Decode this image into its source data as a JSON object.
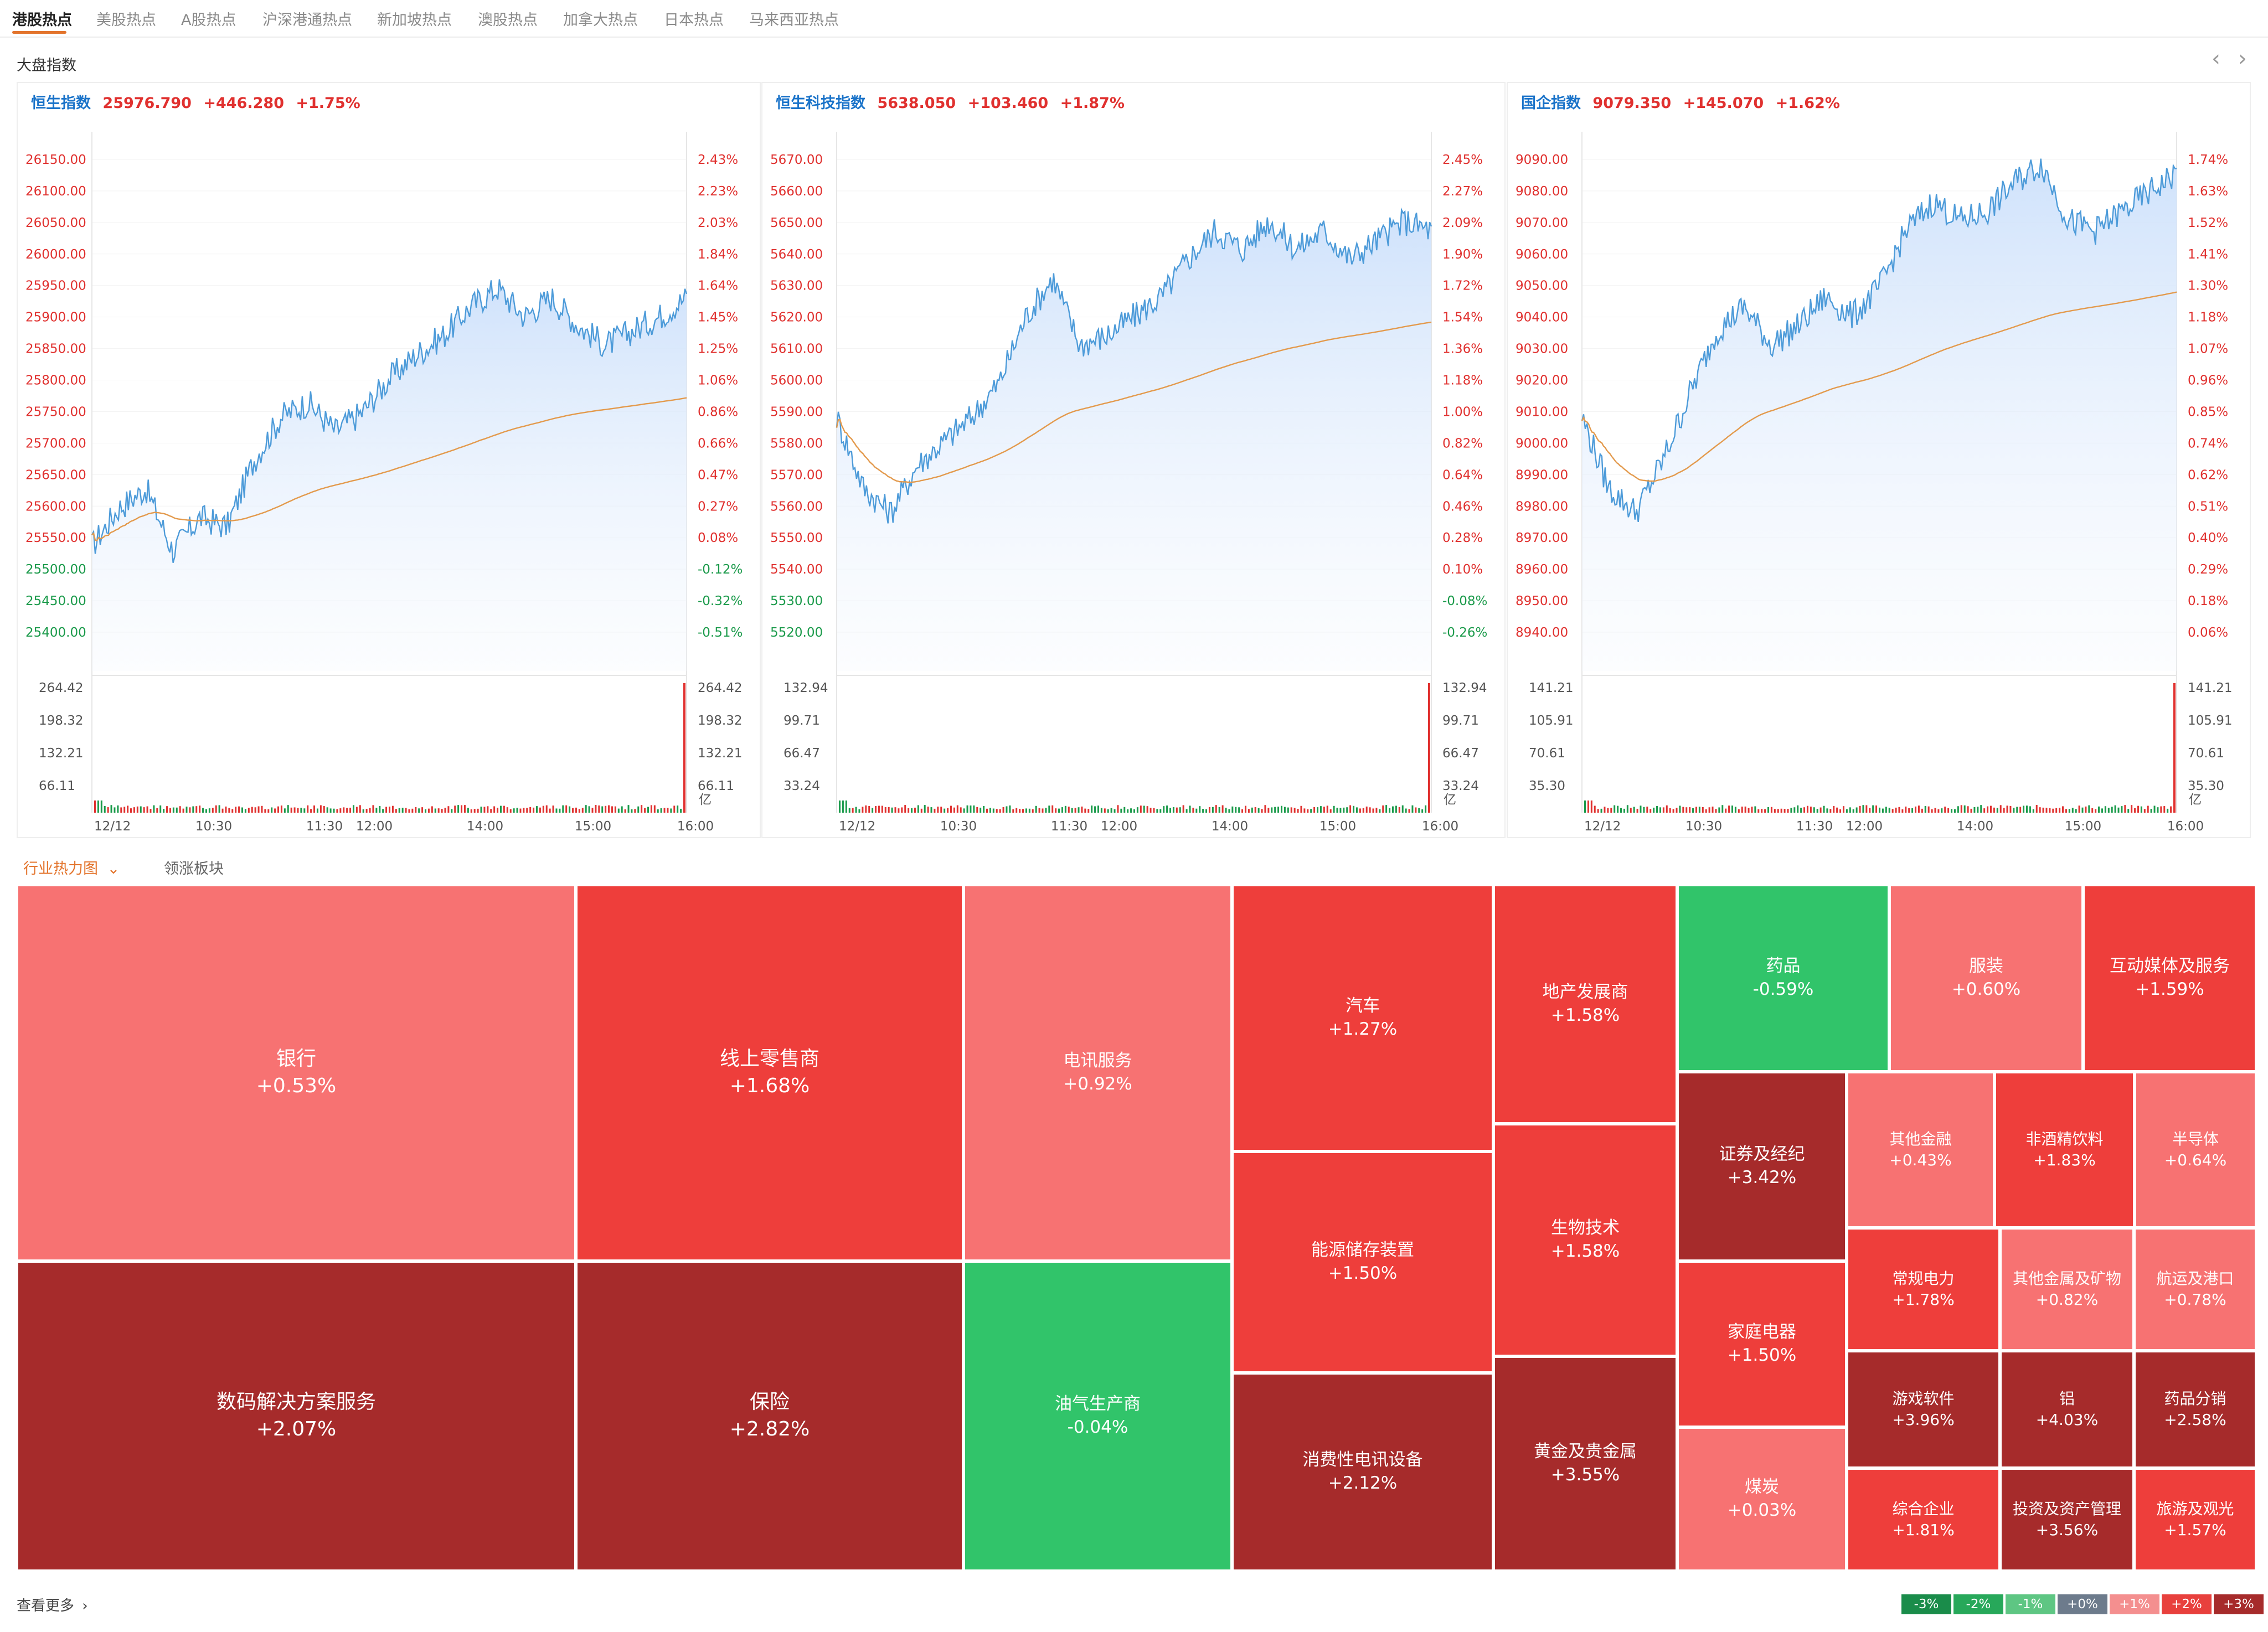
{
  "tabs": [
    "港股热点",
    "美股热点",
    "A股热点",
    "沪深港通热点",
    "新加坡热点",
    "澳股热点",
    "加拿大热点",
    "日本热点",
    "马来西亚热点"
  ],
  "section_title": "大盘指数",
  "nav": {
    "prev": "‹",
    "next": "›"
  },
  "colors": {
    "up": "#e0312f",
    "down": "#1a9a4a",
    "line": "#4d9bd9",
    "avg": "#e39a4d",
    "accent": "#e3742c",
    "fill_top": "#cfe2fb",
    "fill_bottom": "#f4f8fe",
    "name": "#1a73c9"
  },
  "time_labels": [
    "12/12",
    "10:30",
    "11:30",
    "12:00",
    "14:00",
    "15:00",
    "16:00"
  ],
  "volume_unit": "亿",
  "indices": [
    {
      "name": "恒生指数",
      "price": "25976.790",
      "change": "+446.280",
      "pct": "+1.75%",
      "price_ticks": [
        "26150.00",
        "26100.00",
        "26050.00",
        "26000.00",
        "25950.00",
        "25900.00",
        "25850.00",
        "25800.00",
        "25750.00",
        "25700.00",
        "25650.00",
        "25600.00",
        "25550.00",
        "25500.00",
        "25450.00",
        "25400.00"
      ],
      "pct_ticks": [
        "2.43%",
        "2.23%",
        "2.03%",
        "1.84%",
        "1.64%",
        "1.45%",
        "1.25%",
        "1.06%",
        "0.86%",
        "0.66%",
        "0.47%",
        "0.27%",
        "0.08%",
        "-0.12%",
        "-0.32%",
        "-0.51%"
      ],
      "vol_ticks": [
        "264.42",
        "198.32",
        "132.21",
        "66.11"
      ]
    },
    {
      "name": "恒生科技指数",
      "price": "5638.050",
      "change": "+103.460",
      "pct": "+1.87%",
      "price_ticks": [
        "5670.00",
        "5660.00",
        "5650.00",
        "5640.00",
        "5630.00",
        "5620.00",
        "5610.00",
        "5600.00",
        "5590.00",
        "5580.00",
        "5570.00",
        "5560.00",
        "5550.00",
        "5540.00",
        "5530.00",
        "5520.00"
      ],
      "pct_ticks": [
        "2.45%",
        "2.27%",
        "2.09%",
        "1.90%",
        "1.72%",
        "1.54%",
        "1.36%",
        "1.18%",
        "1.00%",
        "0.82%",
        "0.64%",
        "0.46%",
        "0.28%",
        "0.10%",
        "-0.08%",
        "-0.26%"
      ],
      "vol_ticks": [
        "132.94",
        "99.71",
        "66.47",
        "33.24"
      ]
    },
    {
      "name": "国企指数",
      "price": "9079.350",
      "change": "+145.070",
      "pct": "+1.62%",
      "price_ticks": [
        "9090.00",
        "9080.00",
        "9070.00",
        "9060.00",
        "9050.00",
        "9040.00",
        "9030.00",
        "9020.00",
        "9010.00",
        "9000.00",
        "8990.00",
        "8980.00",
        "8970.00",
        "8960.00",
        "8950.00",
        "8940.00"
      ],
      "pct_ticks": [
        "1.74%",
        "1.63%",
        "1.52%",
        "1.41%",
        "1.30%",
        "1.18%",
        "1.07%",
        "0.96%",
        "0.85%",
        "0.74%",
        "0.62%",
        "0.51%",
        "0.40%",
        "0.29%",
        "0.18%",
        "0.06%"
      ],
      "vol_ticks": [
        "141.21",
        "105.91",
        "70.61",
        "35.30"
      ]
    }
  ],
  "heatmap_title": "行业热力图",
  "heatmap_dropdown": "⌄",
  "heatmap_tab2": "领涨板块",
  "more_link": "查看更多",
  "more_arrow": "›",
  "sectors": [
    {
      "name": "银行",
      "pct": "+0.53%",
      "color": "#f77272"
    },
    {
      "name": "数码解决方案服务",
      "pct": "+2.07%",
      "color": "#a62b2b"
    },
    {
      "name": "线上零售商",
      "pct": "+1.68%",
      "color": "#ee3e3b"
    },
    {
      "name": "保险",
      "pct": "+2.82%",
      "color": "#a62b2b"
    },
    {
      "name": "电讯服务",
      "pct": "+0.92%",
      "color": "#f77272"
    },
    {
      "name": "油气生产商",
      "pct": "-0.04%",
      "color": "#31c46a"
    },
    {
      "name": "汽车",
      "pct": "+1.27%",
      "color": "#ee3e3b"
    },
    {
      "name": "能源储存装置",
      "pct": "+1.50%",
      "color": "#ee3e3b"
    },
    {
      "name": "消费性电讯设备",
      "pct": "+2.12%",
      "color": "#a62b2b"
    },
    {
      "name": "地产发展商",
      "pct": "+1.58%",
      "color": "#ee3e3b"
    },
    {
      "name": "生物技术",
      "pct": "+1.58%",
      "color": "#ee3e3b"
    },
    {
      "name": "黄金及贵金属",
      "pct": "+3.55%",
      "color": "#a62b2b"
    },
    {
      "name": "药品",
      "pct": "-0.59%",
      "color": "#31c46a"
    },
    {
      "name": "服装",
      "pct": "+0.60%",
      "color": "#f77272"
    },
    {
      "name": "互动媒体及服务",
      "pct": "+1.59%",
      "color": "#ee3e3b"
    },
    {
      "name": "证券及经纪",
      "pct": "+3.42%",
      "color": "#a62b2b"
    },
    {
      "name": "家庭电器",
      "pct": "+1.50%",
      "color": "#ee3e3b"
    },
    {
      "name": "煤炭",
      "pct": "+0.03%",
      "color": "#f77272"
    },
    {
      "name": "其他金融",
      "pct": "+0.43%",
      "color": "#f77272"
    },
    {
      "name": "非酒精饮料",
      "pct": "+1.83%",
      "color": "#ee3e3b"
    },
    {
      "name": "半导体",
      "pct": "+0.64%",
      "color": "#f77272"
    },
    {
      "name": "常规电力",
      "pct": "+1.78%",
      "color": "#ee3e3b"
    },
    {
      "name": "其他金属及矿物",
      "pct": "+0.82%",
      "color": "#f77272"
    },
    {
      "name": "航运及港口",
      "pct": "+0.78%",
      "color": "#f77272"
    },
    {
      "name": "游戏软件",
      "pct": "+3.96%",
      "color": "#a62b2b"
    },
    {
      "name": "铝",
      "pct": "+4.03%",
      "color": "#a62b2b"
    },
    {
      "name": "药品分销",
      "pct": "+2.58%",
      "color": "#a62b2b"
    },
    {
      "name": "综合企业",
      "pct": "+1.81%",
      "color": "#ee3e3b"
    },
    {
      "name": "投资及资产管理",
      "pct": "+3.56%",
      "color": "#a62b2b"
    },
    {
      "name": "旅游及观光",
      "pct": "+1.57%",
      "color": "#ee3e3b"
    }
  ],
  "legend": [
    {
      "label": "-3%",
      "color": "#1a8c4a"
    },
    {
      "label": "-2%",
      "color": "#27a85a"
    },
    {
      "label": "-1%",
      "color": "#5ec683"
    },
    {
      "label": "+0%",
      "color": "#6d7b8c"
    },
    {
      "label": "+1%",
      "color": "#f48f8f"
    },
    {
      "label": "+2%",
      "color": "#e8403d"
    },
    {
      "label": "+3%",
      "color": "#a62b2b"
    }
  ]
}
